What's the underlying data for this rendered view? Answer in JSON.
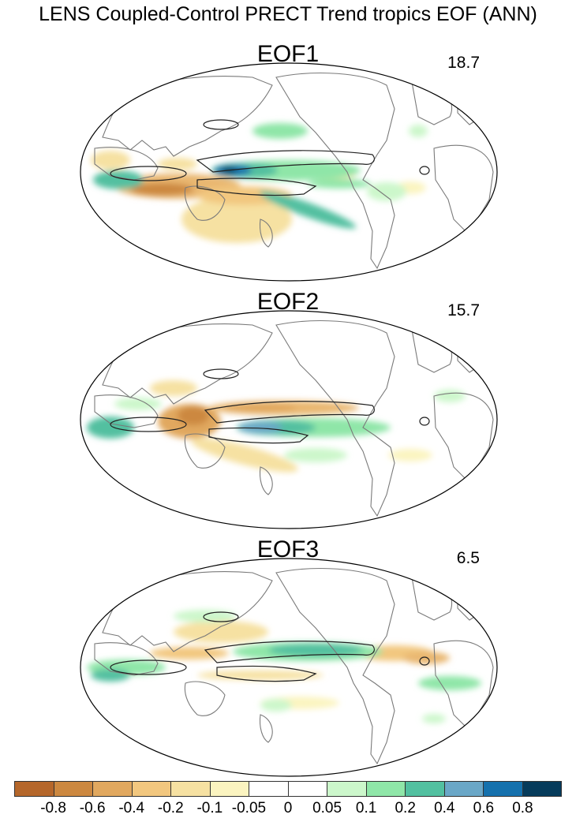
{
  "figure": {
    "title": "LENS Coupled-Control PRECT Trend tropics EOF (ANN)"
  },
  "panels": [
    {
      "title": "EOF1",
      "variance_percent": "18.7"
    },
    {
      "title": "EOF2",
      "variance_percent": "15.7"
    },
    {
      "title": "EOF3",
      "variance_percent": "6.5"
    }
  ],
  "colorbar": {
    "colors": [
      "#b5672b",
      "#cc8840",
      "#e1a85f",
      "#f2c77f",
      "#f6e1a2",
      "#fbf4c0",
      "#ffffff",
      "#ffffff",
      "#ccf7cb",
      "#8fe6a8",
      "#52c0a0",
      "#6aa7c7",
      "#1571ad",
      "#063b5b"
    ],
    "labels": [
      "-0.8",
      "-0.6",
      "-0.4",
      "-0.2",
      "-0.1",
      "-0.05",
      "0",
      "0.05",
      "0.1",
      "0.2",
      "0.4",
      "0.6",
      "0.8"
    ]
  }
}
